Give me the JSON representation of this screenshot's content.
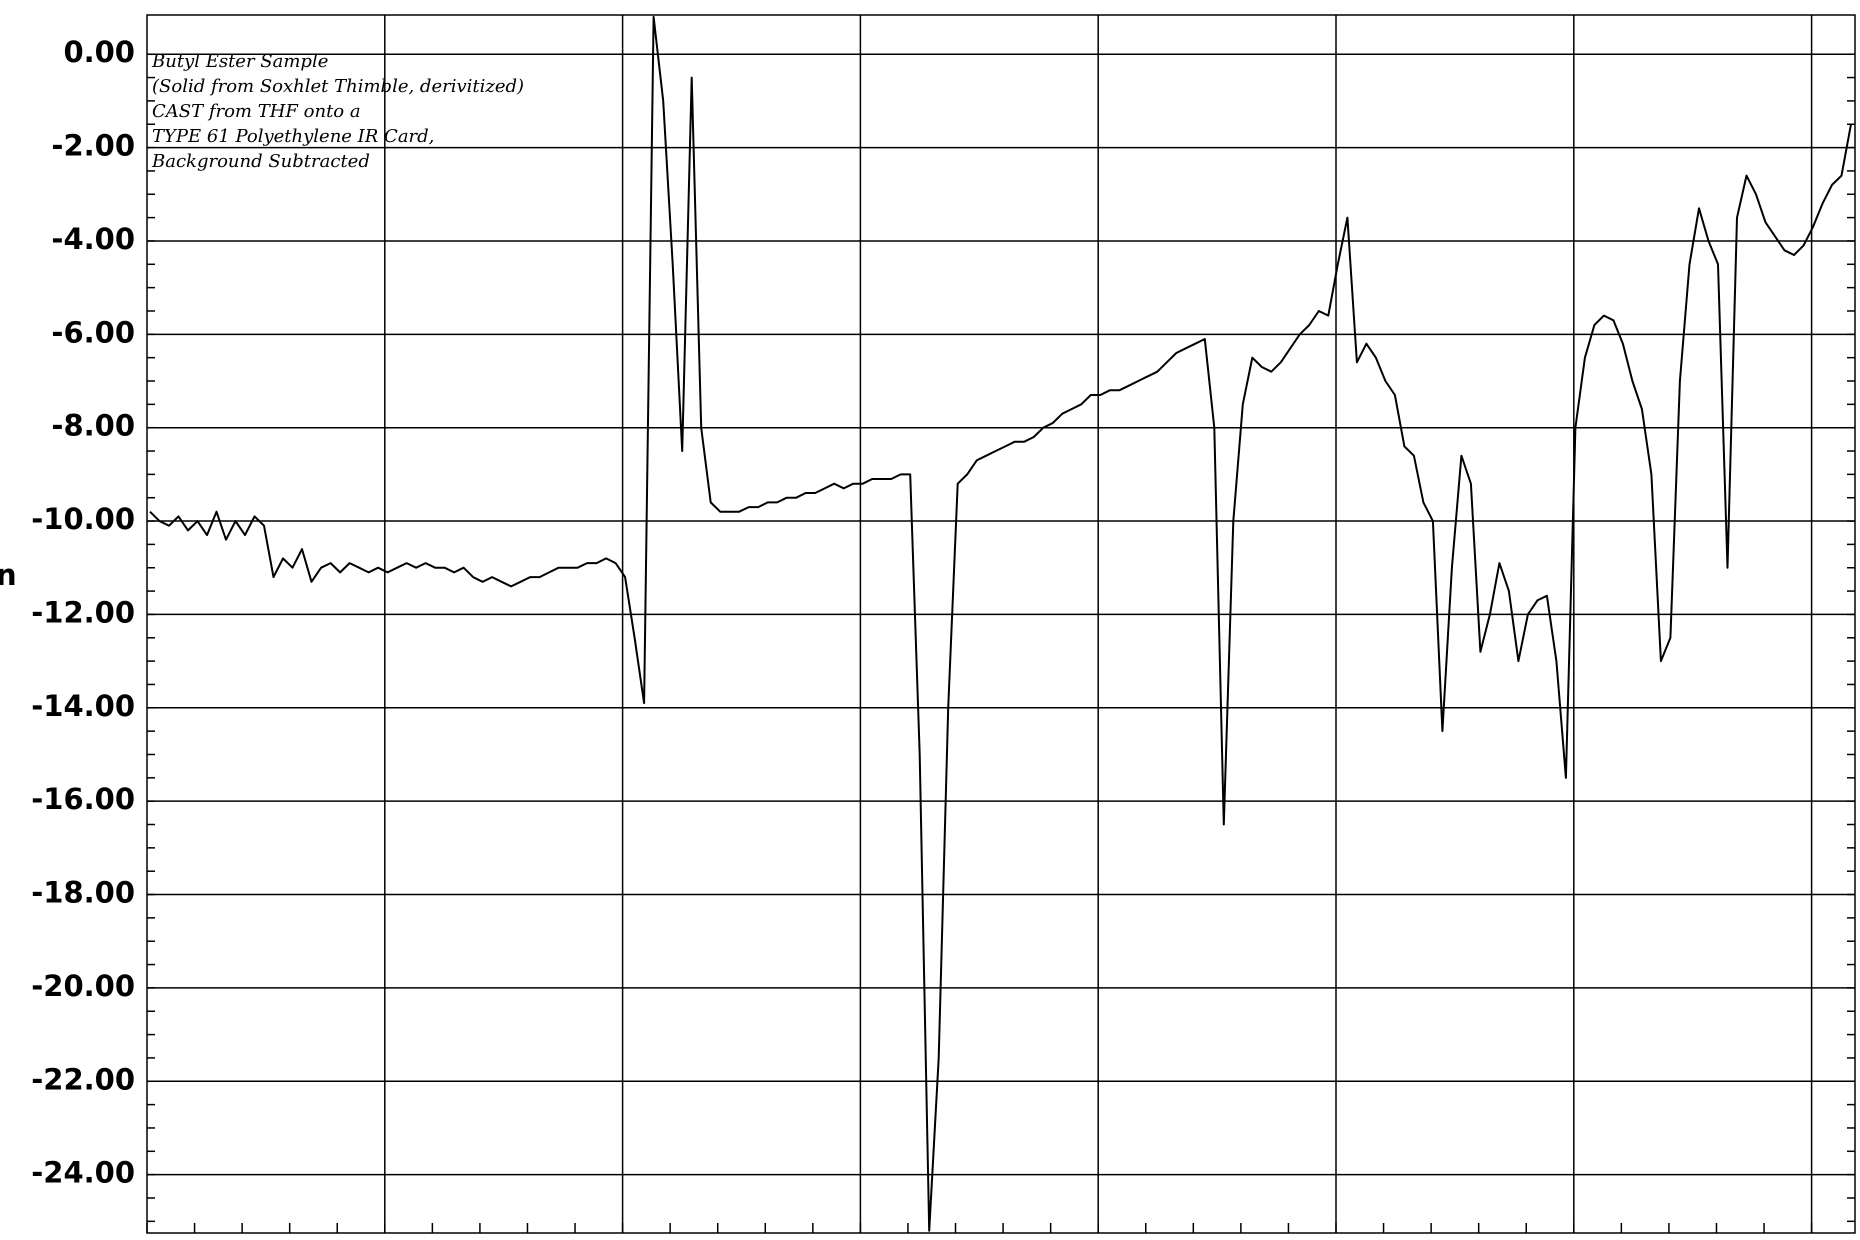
{
  "chart_data": {
    "type": "line",
    "y_label": "n",
    "annotation": [
      "Butyl Ester Sample",
      "(Solid from Soxhlet Thimble, derivitized)",
      "CAST from THF onto a",
      "TYPE 61 Polyethylene IR Card,",
      "Background Subtracted"
    ],
    "color": "#000000",
    "grid": true,
    "ylim": [
      -25.25,
      0.84
    ],
    "yticks": [
      {
        "value": 0,
        "label": "0.00"
      },
      {
        "value": -2,
        "label": "-2.00"
      },
      {
        "value": -4,
        "label": "-4.00"
      },
      {
        "value": -6,
        "label": "-6.00"
      },
      {
        "value": -8,
        "label": "-8.00"
      },
      {
        "value": -10,
        "label": "-10.00"
      },
      {
        "value": -12,
        "label": "-12.00"
      },
      {
        "value": -14,
        "label": "-14.00"
      },
      {
        "value": -16,
        "label": "-16.00"
      },
      {
        "value": -18,
        "label": "-18.00"
      },
      {
        "value": -20,
        "label": "-20.00"
      },
      {
        "value": -22,
        "label": "-22.00"
      },
      {
        "value": -24,
        "label": "-24.00"
      }
    ],
    "values": [
      -9.8,
      -10.0,
      -10.1,
      -9.9,
      -10.2,
      -10.0,
      -10.3,
      -9.8,
      -10.4,
      -10.0,
      -10.3,
      -9.9,
      -10.1,
      -11.2,
      -10.8,
      -11.0,
      -10.6,
      -11.3,
      -11.0,
      -10.9,
      -11.1,
      -10.9,
      -11.0,
      -11.1,
      -11.0,
      -11.1,
      -11.0,
      -10.9,
      -11.0,
      -10.9,
      -11.0,
      -11.0,
      -11.1,
      -11.0,
      -11.2,
      -11.3,
      -11.2,
      -11.3,
      -11.4,
      -11.3,
      -11.2,
      -11.2,
      -11.1,
      -11.0,
      -11.0,
      -11.0,
      -10.9,
      -10.9,
      -10.8,
      -10.9,
      -11.2,
      -12.5,
      -13.9,
      0.8,
      -1.0,
      -4.5,
      -8.5,
      -0.5,
      -8.0,
      -9.6,
      -9.8,
      -9.8,
      -9.8,
      -9.7,
      -9.7,
      -9.6,
      -9.6,
      -9.5,
      -9.5,
      -9.4,
      -9.4,
      -9.3,
      -9.2,
      -9.3,
      -9.2,
      -9.2,
      -9.1,
      -9.1,
      -9.1,
      -9.0,
      -9.0,
      -15.0,
      -25.2,
      -21.5,
      -14.0,
      -9.2,
      -9.0,
      -8.7,
      -8.6,
      -8.5,
      -8.4,
      -8.3,
      -8.3,
      -8.2,
      -8.0,
      -7.9,
      -7.7,
      -7.6,
      -7.5,
      -7.3,
      -7.3,
      -7.2,
      -7.2,
      -7.1,
      -7.0,
      -6.9,
      -6.8,
      -6.6,
      -6.4,
      -6.3,
      -6.2,
      -6.1,
      -8.0,
      -16.5,
      -10.0,
      -7.5,
      -6.5,
      -6.7,
      -6.8,
      -6.6,
      -6.3,
      -6.0,
      -5.8,
      -5.5,
      -5.6,
      -4.5,
      -3.5,
      -6.6,
      -6.2,
      -6.5,
      -7.0,
      -7.3,
      -8.4,
      -8.6,
      -9.6,
      -10.0,
      -14.5,
      -11.0,
      -8.6,
      -9.2,
      -12.8,
      -12.0,
      -10.9,
      -11.5,
      -13.0,
      -12.0,
      -11.7,
      -11.6,
      -13.0,
      -15.5,
      -8.0,
      -6.5,
      -5.8,
      -5.6,
      -5.7,
      -6.2,
      -7.0,
      -7.6,
      -9.0,
      -13.0,
      -12.5,
      -7.0,
      -4.5,
      -3.3,
      -4.0,
      -4.5,
      -11.0,
      -3.5,
      -2.6,
      -3.0,
      -3.6,
      -3.9,
      -4.2,
      -4.3,
      -4.1,
      -3.7,
      -3.2,
      -2.8,
      -2.6,
      -1.5
    ]
  }
}
